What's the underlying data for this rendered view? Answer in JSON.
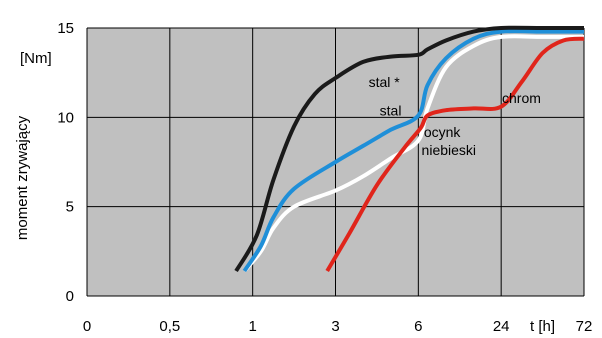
{
  "chart_data": {
    "type": "line",
    "title": "",
    "unit_label": "[Nm]",
    "ylabel": "moment zrywający",
    "xlabel": "t [h]",
    "x_categories": [
      "0",
      "0,5",
      "1",
      "3",
      "6",
      "24",
      "72"
    ],
    "xlim": [
      0,
      72
    ],
    "y_ticks": [
      "0",
      "5",
      "10",
      "15"
    ],
    "ylim": [
      0,
      15
    ],
    "grid": true,
    "legend": "none",
    "colors": {
      "plot_background": "#c0c0c0",
      "grid": "#000000"
    },
    "series": [
      {
        "name": "stal *",
        "color": "#1a1a1a",
        "points": [
          [
            0.9,
            1.4
          ],
          [
            1.1,
            3.4
          ],
          [
            1.5,
            6.5
          ],
          [
            2.0,
            9.5
          ],
          [
            2.5,
            11.3
          ],
          [
            3.0,
            12.2
          ],
          [
            4.0,
            13.1
          ],
          [
            5.0,
            13.4
          ],
          [
            6.0,
            13.5
          ],
          [
            8.0,
            13.8
          ],
          [
            12.0,
            14.3
          ],
          [
            18.0,
            14.8
          ],
          [
            24.0,
            15.0
          ],
          [
            48.0,
            15.0
          ],
          [
            72.0,
            15.0
          ]
        ]
      },
      {
        "name": "stal",
        "color": "#1f8fd8",
        "points": [
          [
            0.95,
            1.4
          ],
          [
            1.2,
            2.8
          ],
          [
            1.5,
            4.4
          ],
          [
            2.0,
            6.0
          ],
          [
            3.0,
            7.5
          ],
          [
            4.0,
            8.4
          ],
          [
            5.0,
            9.3
          ],
          [
            6.0,
            10.1
          ],
          [
            8.0,
            11.8
          ],
          [
            12.0,
            13.3
          ],
          [
            18.0,
            14.4
          ],
          [
            24.0,
            14.8
          ],
          [
            48.0,
            14.8
          ],
          [
            72.0,
            14.8
          ]
        ]
      },
      {
        "name": "ocynk niebieski",
        "color": "#ffffff",
        "points": [
          [
            0.95,
            1.4
          ],
          [
            1.2,
            2.5
          ],
          [
            1.5,
            3.8
          ],
          [
            2.0,
            5.0
          ],
          [
            3.0,
            5.9
          ],
          [
            4.0,
            6.7
          ],
          [
            5.0,
            7.7
          ],
          [
            6.0,
            8.7
          ],
          [
            8.0,
            10.5
          ],
          [
            12.0,
            12.8
          ],
          [
            18.0,
            14.0
          ],
          [
            24.0,
            14.5
          ],
          [
            48.0,
            14.5
          ],
          [
            72.0,
            14.5
          ]
        ]
      },
      {
        "name": "chrom",
        "color": "#e0251b",
        "points": [
          [
            2.8,
            1.4
          ],
          [
            3.5,
            3.5
          ],
          [
            4.5,
            6.2
          ],
          [
            5.5,
            8.3
          ],
          [
            6.5,
            9.4
          ],
          [
            8.0,
            10.1
          ],
          [
            12.0,
            10.4
          ],
          [
            18.0,
            10.5
          ],
          [
            24.0,
            10.6
          ],
          [
            36.0,
            12.0
          ],
          [
            48.0,
            13.6
          ],
          [
            60.0,
            14.3
          ],
          [
            72.0,
            14.4
          ]
        ]
      }
    ],
    "annotations": [
      {
        "id": "stal-star",
        "text": "stal *",
        "x": 4.2,
        "y": 11.7
      },
      {
        "id": "stal",
        "text": "stal",
        "x": 4.6,
        "y": 10.1
      },
      {
        "id": "ocynk",
        "text": "ocynk",
        "x": 7.2,
        "y": 8.9
      },
      {
        "id": "niebieski",
        "text": "niebieski",
        "x": 6.7,
        "y": 7.9
      },
      {
        "id": "chrom",
        "text": "chrom",
        "x": 24.5,
        "y": 10.8
      }
    ]
  }
}
